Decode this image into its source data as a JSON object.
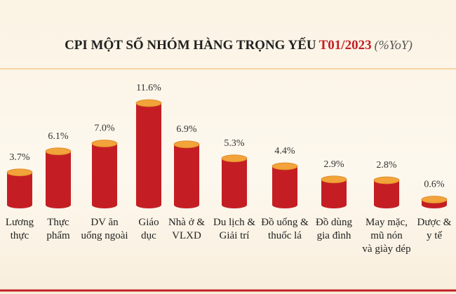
{
  "chart_data": {
    "type": "cylinder-bar",
    "title": [
      "CPI MỘT SỐ NHÓM HÀNG TRỌNG YẾU",
      "T01/2023",
      "(%YoY)"
    ],
    "categories": [
      "Lương\nthực",
      "Thực\nphẩm",
      "DV ăn\nuống ngoài",
      "Giáo\ndục",
      "Nhà ở &\nVLXD",
      "Du lịch &\nGiải trí",
      "Đồ uống &\nthuốc lá",
      "Đồ dùng\ngia đình",
      "May mặc,\nmũ nón\nvà giày dép",
      "Dược &\ny tế"
    ],
    "values": [
      3.7,
      6.1,
      7.0,
      11.6,
      6.9,
      5.3,
      4.4,
      2.9,
      2.8,
      0.6
    ],
    "value_labels": [
      "3.7%",
      "6.1%",
      "7.0%",
      "11.6%",
      "6.9%",
      "5.3%",
      "4.4%",
      "2.9%",
      "2.8%",
      "0.6%"
    ],
    "color": "#c41e24",
    "top_color": "#f2a33a"
  }
}
